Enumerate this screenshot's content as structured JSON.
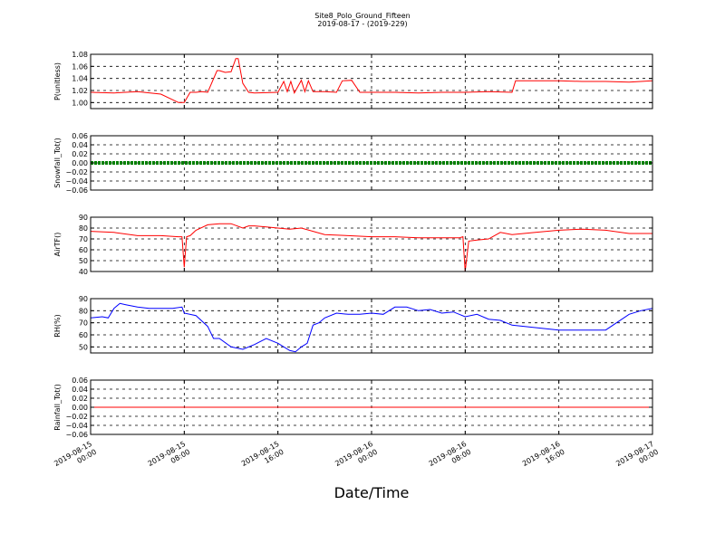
{
  "chart_data": {
    "type": "line",
    "title": "Site8_Polo_Ground_Fifteen",
    "subtitle": "2019-08-17 - (2019-229)",
    "xlabel": "Date/Time",
    "x_ticks": [
      "2019-08-15 00:00",
      "2019-08-15 08:00",
      "2019-08-15 16:00",
      "2019-08-16 00:00",
      "2019-08-16 08:00",
      "2019-08-16 16:00",
      "2019-08-17 00:00"
    ],
    "x_range_hours": [
      0,
      48
    ],
    "panels": [
      {
        "name": "P",
        "ylabel": "P(unitless)",
        "ylim": [
          0.99,
          1.08
        ],
        "yticks": [
          "1.00",
          "1.02",
          "1.04",
          "1.06",
          "1.08"
        ],
        "color": "#ff0000",
        "series": {
          "x_hours": [
            0,
            2,
            4,
            6,
            7.5,
            8,
            8.5,
            9,
            9.5,
            10,
            10.8,
            11,
            11.5,
            12,
            12.4,
            12.6,
            13,
            13.5,
            14,
            16,
            16.5,
            16.8,
            17.1,
            17.4,
            18,
            18.3,
            18.6,
            19,
            19.5,
            20,
            21,
            21.5,
            22.3,
            23,
            24,
            26,
            28,
            30,
            32,
            34,
            36,
            36.3,
            37,
            38,
            40,
            42,
            44,
            46,
            48
          ],
          "values": [
            1.017,
            1.016,
            1.018,
            1.014,
            1.0,
            1.0,
            1.017,
            1.017,
            1.018,
            1.017,
            1.053,
            1.053,
            1.05,
            1.051,
            1.073,
            1.073,
            1.032,
            1.017,
            1.016,
            1.017,
            1.035,
            1.018,
            1.035,
            1.016,
            1.037,
            1.018,
            1.036,
            1.018,
            1.018,
            1.018,
            1.017,
            1.036,
            1.037,
            1.017,
            1.017,
            1.017,
            1.016,
            1.017,
            1.017,
            1.018,
            1.017,
            1.036,
            1.036,
            1.036,
            1.036,
            1.035,
            1.035,
            1.034,
            1.036
          ]
        }
      },
      {
        "name": "Snowfall_Tot",
        "ylabel": "Snowfall_Tot()",
        "ylim": [
          -0.06,
          0.06
        ],
        "yticks": [
          "−0.06",
          "−0.04",
          "−0.02",
          "0.00",
          "0.02",
          "0.04",
          "0.06"
        ],
        "color": "#008000",
        "series": {
          "x_hours": [
            0,
            48
          ],
          "values": [
            0,
            0
          ]
        }
      },
      {
        "name": "AirTF",
        "ylabel": "AirTF()",
        "ylim": [
          40,
          90
        ],
        "yticks": [
          "40",
          "50",
          "60",
          "70",
          "80",
          "90"
        ],
        "color": "#ff0000",
        "series": {
          "x_hours": [
            0,
            2,
            4,
            6,
            7.5,
            7.8,
            8,
            8.2,
            8.5,
            9,
            10,
            11,
            12,
            13,
            13.5,
            14,
            15,
            16,
            17,
            18,
            20,
            22,
            24,
            26,
            28,
            30,
            31.5,
            31.8,
            32,
            32.3,
            33,
            34,
            35,
            36,
            37,
            38,
            40,
            42,
            44,
            46,
            48
          ],
          "values": [
            77,
            76,
            73,
            73,
            72,
            72,
            44,
            72,
            73,
            78,
            83,
            84,
            84,
            80,
            82,
            82,
            81,
            80,
            79,
            80,
            74,
            73,
            72,
            72,
            71,
            71,
            71,
            72,
            40,
            68,
            69,
            70,
            76,
            74,
            75,
            76,
            78,
            79,
            78,
            75,
            75
          ]
        }
      },
      {
        "name": "RH",
        "ylabel": "RH(%)",
        "ylim": [
          45,
          90
        ],
        "yticks": [
          "50",
          "60",
          "70",
          "80",
          "90"
        ],
        "color": "#0000ff",
        "series": {
          "x_hours": [
            0,
            1,
            1.5,
            2,
            2.5,
            3,
            4,
            5,
            6,
            7,
            7.8,
            8,
            9,
            10,
            10.5,
            11,
            12,
            13,
            14,
            15,
            16,
            17,
            17.5,
            18,
            18.5,
            19,
            19.5,
            20,
            21,
            22,
            23,
            24,
            25,
            26,
            27,
            28,
            29,
            30,
            31,
            32,
            33,
            34,
            35,
            36,
            38,
            40,
            42,
            44,
            46,
            47,
            48
          ],
          "values": [
            74,
            75,
            74,
            82,
            86,
            85,
            83,
            82,
            82,
            82,
            83,
            78,
            76,
            67,
            57,
            57,
            50,
            48,
            52,
            57,
            53,
            47,
            46,
            50,
            53,
            68,
            70,
            74,
            78,
            77,
            77,
            78,
            77,
            83,
            83,
            80,
            81,
            78,
            79,
            75,
            77,
            73,
            72,
            68,
            66,
            64,
            64,
            64,
            77,
            80,
            82
          ]
        }
      },
      {
        "name": "Rainfall_Tot",
        "ylabel": "Rainfall_Tot()",
        "ylim": [
          -0.06,
          0.06
        ],
        "yticks": [
          "−0.06",
          "−0.04",
          "−0.02",
          "0.00",
          "0.02",
          "0.04",
          "0.06"
        ],
        "color": "#ff0000",
        "series": {
          "x_hours": [
            0,
            48
          ],
          "values": [
            0,
            0
          ]
        }
      }
    ]
  }
}
